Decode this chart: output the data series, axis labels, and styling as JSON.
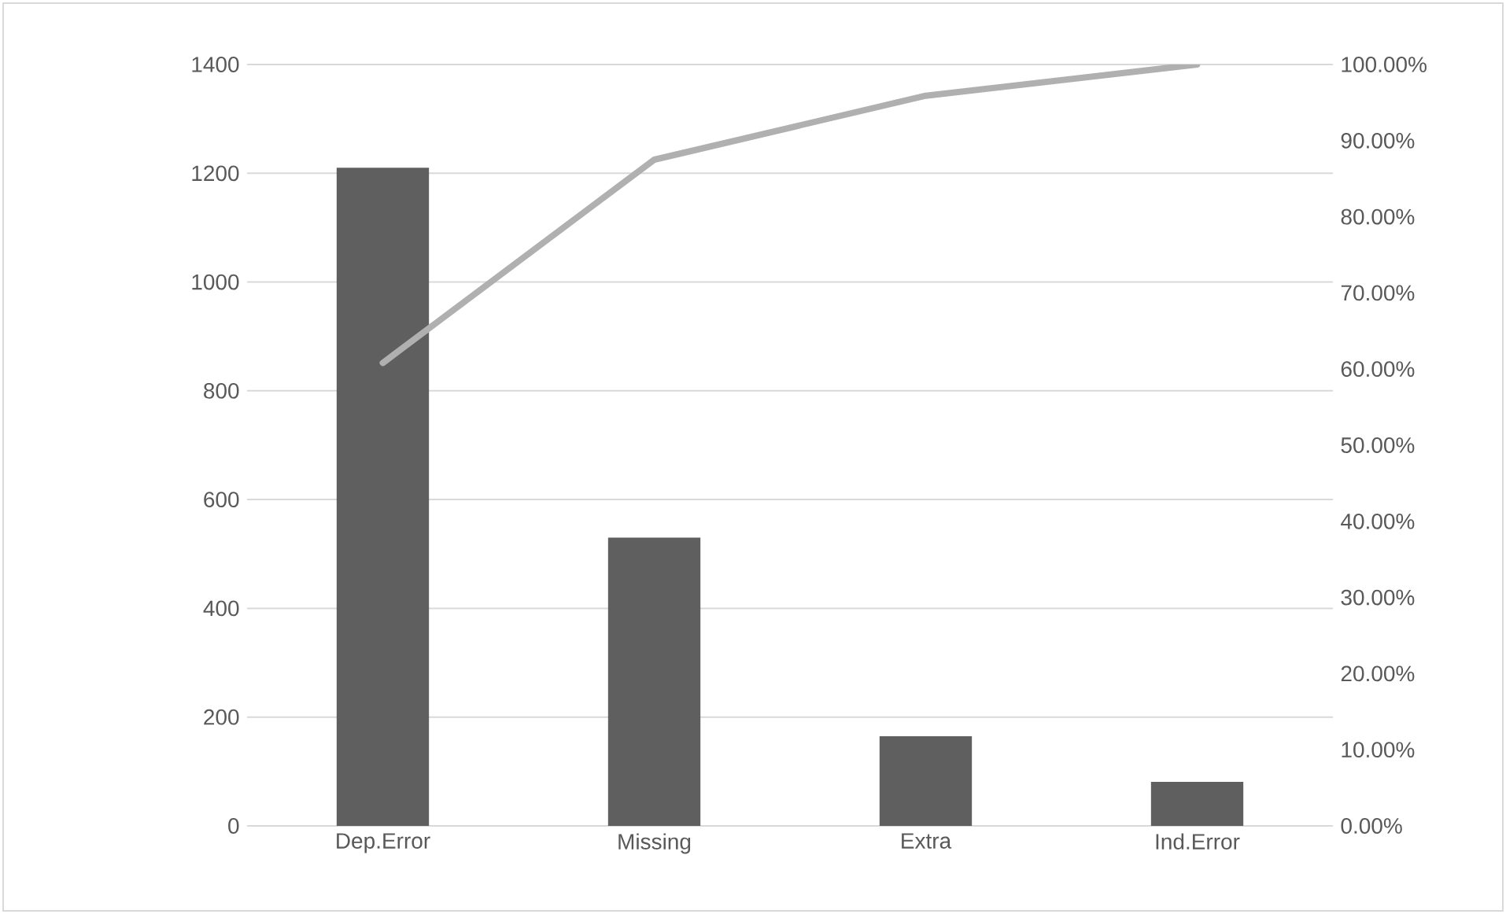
{
  "chart_data": {
    "type": "bar",
    "categories": [
      "Dep.Error",
      "Missing",
      "Extra",
      "Ind.Error"
    ],
    "series": [
      {
        "color": "#5f5f5f",
        "values": [
          1210,
          530,
          165,
          81
        ]
      },
      {
        "type": "line",
        "axis": "y2",
        "color": "#b0b0b0",
        "values": [
          60.8,
          87.5,
          95.9,
          100
        ]
      }
    ],
    "ylim": [
      0,
      1400
    ],
    "yticks": [
      0,
      200,
      400,
      600,
      800,
      1000,
      1200,
      1400
    ],
    "y2lim": [
      0,
      100
    ],
    "y2ticks": [
      {
        "value": 0,
        "label": "0.00%"
      },
      {
        "value": 10,
        "label": "10.00%"
      },
      {
        "value": 20,
        "label": "20.00%"
      },
      {
        "value": 30,
        "label": "30.00%"
      },
      {
        "value": 40,
        "label": "40.00%"
      },
      {
        "value": 50,
        "label": "50.00%"
      },
      {
        "value": 60,
        "label": "60.00%"
      },
      {
        "value": 70,
        "label": "70.00%"
      },
      {
        "value": 80,
        "label": "80.00%"
      },
      {
        "value": 90,
        "label": "90.00%"
      },
      {
        "value": 100,
        "label": "100.00%"
      }
    ],
    "grid": "y"
  }
}
